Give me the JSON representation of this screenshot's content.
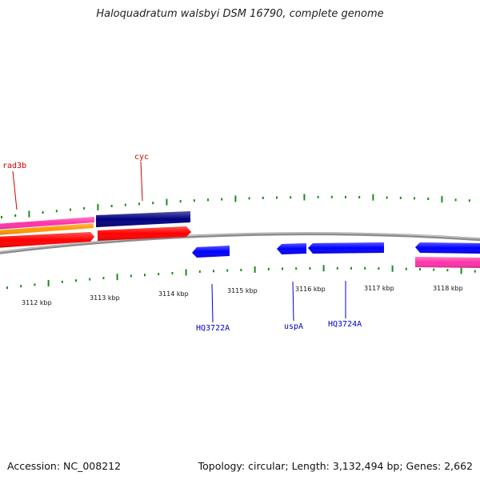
{
  "title": "Haloquadratum walsbyi DSM 16790, complete genome",
  "footer": {
    "accession": "Accession: NC_008212",
    "summary": "Topology: circular; Length: 3,132,494 bp; Genes: 2,662"
  },
  "axis_labels": [
    "3112 kbp",
    "3113 kbp",
    "3114 kbp",
    "3115 kbp",
    "3116 kbp",
    "3117 kbp",
    "3118 kbp"
  ],
  "gene_labels": [
    {
      "text": "rad3b",
      "color": "#cc0000"
    },
    {
      "text": "cyc",
      "color": "#cc0000"
    },
    {
      "text": "HQ3722A",
      "color": "#0000cc"
    },
    {
      "text": "uspA",
      "color": "#0000cc"
    },
    {
      "text": "HQ3724A",
      "color": "#0000cc"
    }
  ],
  "colors": {
    "backbone": "#8c8c8c",
    "tick": "#1a8a1a",
    "magenta": "#ff33aa",
    "orange": "#ff9900",
    "red": "#ff0000",
    "navy": "#000080",
    "blue": "#0000ff",
    "label_red": "#cc0000",
    "label_blue": "#0000cc"
  }
}
